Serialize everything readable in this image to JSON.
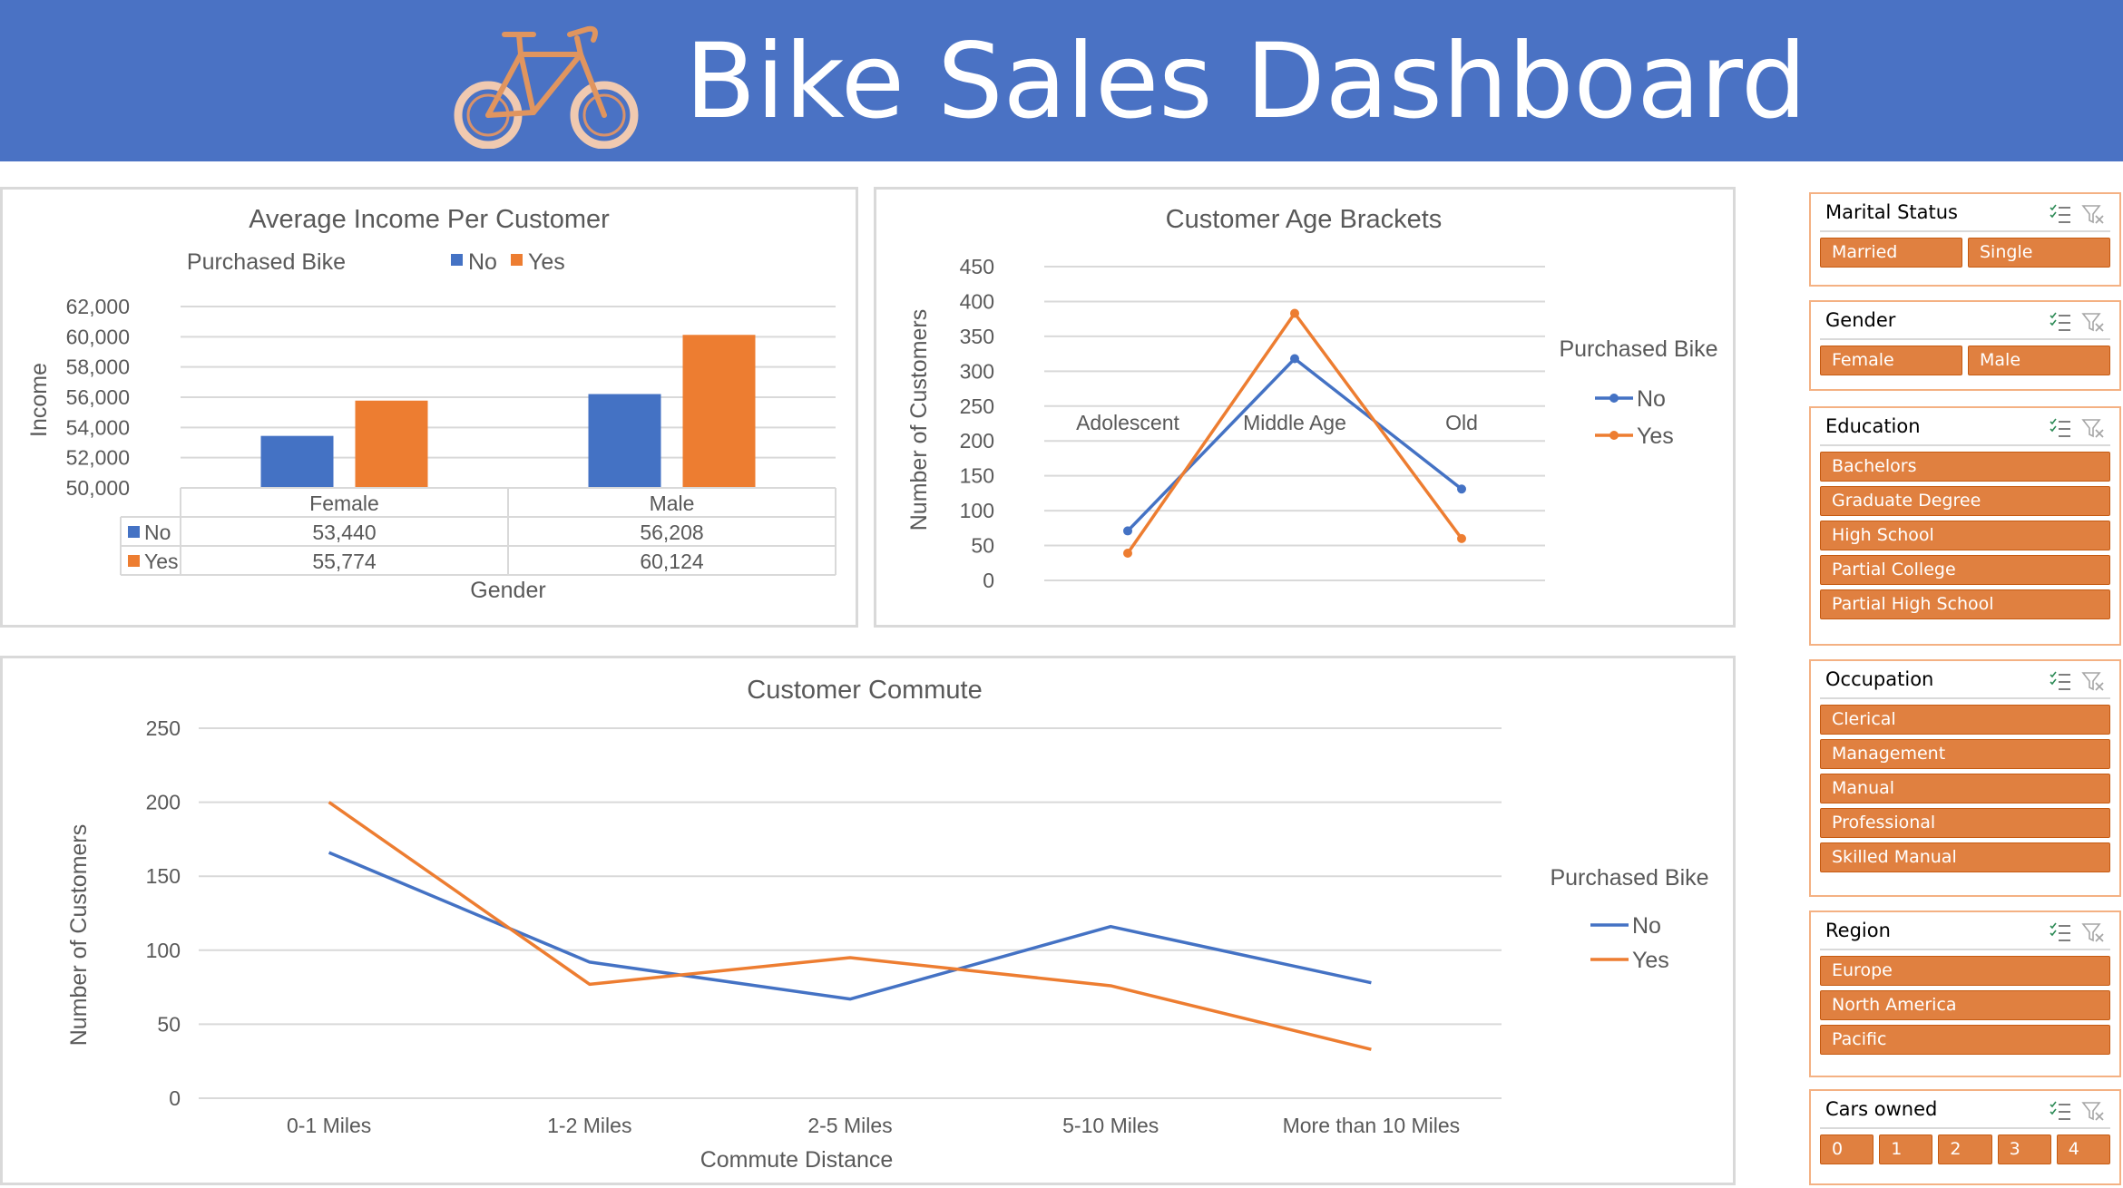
{
  "header": {
    "title": "Bike Sales Dashboard",
    "logo_icon": "bicycle-icon"
  },
  "colors": {
    "banner": "#4a72c4",
    "series_no": "#4472c4",
    "series_yes": "#ed7d31",
    "slicer_item": "#e08040"
  },
  "chart_data": [
    {
      "type": "bar",
      "title": "Average Income Per Customer",
      "legend_title": "Purchased Bike",
      "legend_position": "top",
      "categories": [
        "Female",
        "Male"
      ],
      "series": [
        {
          "name": "No",
          "values": [
            53440,
            56208
          ]
        },
        {
          "name": "Yes",
          "values": [
            55774,
            60124
          ]
        }
      ],
      "table_values": [
        [
          "53,440",
          "56,208"
        ],
        [
          "55,774",
          "60,124"
        ]
      ],
      "xlabel": "Gender",
      "ylabel": "Income",
      "ylim": [
        50000,
        62000
      ],
      "yticks": [
        "50,000",
        "52,000",
        "54,000",
        "56,000",
        "58,000",
        "60,000",
        "62,000"
      ],
      "grid": true
    },
    {
      "type": "line",
      "title": "Customer Age Brackets",
      "legend_title": "Purchased Bike",
      "legend_position": "right",
      "categories": [
        "Adolescent",
        "Middle Age",
        "Old"
      ],
      "series": [
        {
          "name": "No",
          "values": [
            71,
            318,
            131
          ]
        },
        {
          "name": "Yes",
          "values": [
            39,
            383,
            60
          ]
        }
      ],
      "xlabel": "",
      "ylabel": "Number of Customers",
      "ylim": [
        0,
        450
      ],
      "yticks": [
        "0",
        "50",
        "100",
        "150",
        "200",
        "250",
        "300",
        "350",
        "400",
        "450"
      ],
      "markers": true,
      "grid": true
    },
    {
      "type": "line",
      "title": "Customer Commute",
      "legend_title": "Purchased Bike",
      "legend_position": "right",
      "categories": [
        "0-1 Miles",
        "1-2 Miles",
        "2-5 Miles",
        "5-10 Miles",
        "More than 10 Miles"
      ],
      "series": [
        {
          "name": "No",
          "values": [
            166,
            92,
            67,
            116,
            78
          ]
        },
        {
          "name": "Yes",
          "values": [
            200,
            77,
            95,
            76,
            33
          ]
        }
      ],
      "xlabel": "Commute Distance",
      "ylabel": "Number of Customers",
      "ylim": [
        0,
        250
      ],
      "yticks": [
        "0",
        "50",
        "100",
        "150",
        "200",
        "250"
      ],
      "markers": false,
      "grid": true
    }
  ],
  "slicers": [
    {
      "title": "Marital Status",
      "layout": "grid2",
      "items": [
        "Married",
        "Single"
      ]
    },
    {
      "title": "Gender",
      "layout": "grid2",
      "items": [
        "Female",
        "Male"
      ]
    },
    {
      "title": "Education",
      "layout": "list",
      "items": [
        "Bachelors",
        "Graduate Degree",
        "High School",
        "Partial College",
        "Partial High School"
      ]
    },
    {
      "title": "Occupation",
      "layout": "list",
      "items": [
        "Clerical",
        "Management",
        "Manual",
        "Professional",
        "Skilled Manual"
      ]
    },
    {
      "title": "Region",
      "layout": "list",
      "items": [
        "Europe",
        "North America",
        "Pacific"
      ]
    },
    {
      "title": "Cars owned",
      "layout": "grid5",
      "items": [
        "0",
        "1",
        "2",
        "3",
        "4"
      ]
    }
  ],
  "slicer_icons": {
    "multi_select": "multi-select-icon",
    "clear_filter": "clear-filter-icon"
  }
}
